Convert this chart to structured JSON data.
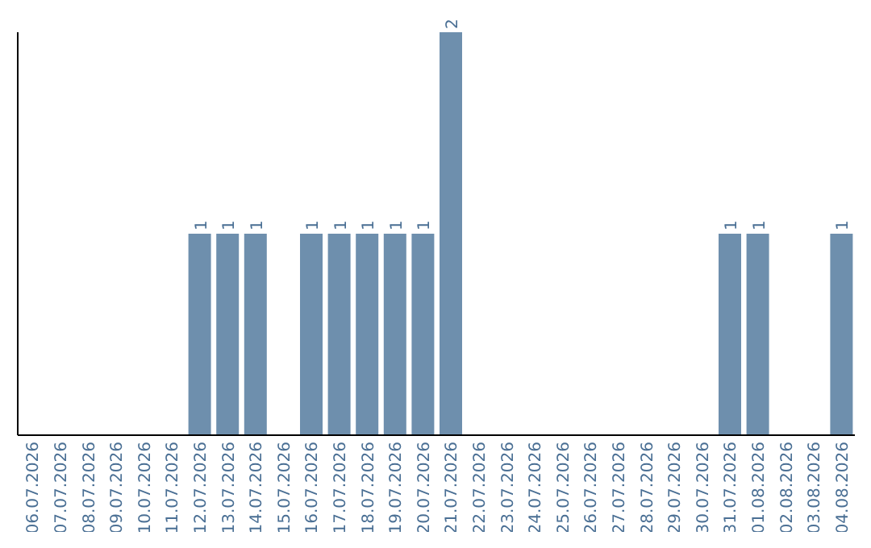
{
  "chart_data": {
    "type": "bar",
    "categories": [
      "06.07.2026",
      "07.07.2026",
      "08.07.2026",
      "09.07.2026",
      "10.07.2026",
      "11.07.2026",
      "12.07.2026",
      "13.07.2026",
      "14.07.2026",
      "15.07.2026",
      "16.07.2026",
      "17.07.2026",
      "18.07.2026",
      "19.07.2026",
      "20.07.2026",
      "21.07.2026",
      "22.07.2026",
      "23.07.2026",
      "24.07.2026",
      "25.07.2026",
      "26.07.2026",
      "27.07.2026",
      "28.07.2026",
      "29.07.2026",
      "30.07.2026",
      "31.07.2026",
      "01.08.2026",
      "02.08.2026",
      "03.08.2026",
      "04.08.2026"
    ],
    "values": [
      0,
      0,
      0,
      0,
      0,
      0,
      1,
      1,
      1,
      0,
      1,
      1,
      1,
      1,
      1,
      2,
      0,
      0,
      0,
      0,
      0,
      0,
      0,
      0,
      0,
      1,
      1,
      0,
      0,
      1
    ],
    "value_labels": [
      null,
      null,
      null,
      null,
      null,
      null,
      "1",
      "1",
      "1",
      null,
      "1",
      "1",
      "1",
      "1",
      "1",
      "2",
      null,
      null,
      null,
      null,
      null,
      null,
      null,
      null,
      null,
      "1",
      "1",
      null,
      null,
      "1"
    ],
    "color": "#6e8fad",
    "grid": false,
    "legend": false
  }
}
